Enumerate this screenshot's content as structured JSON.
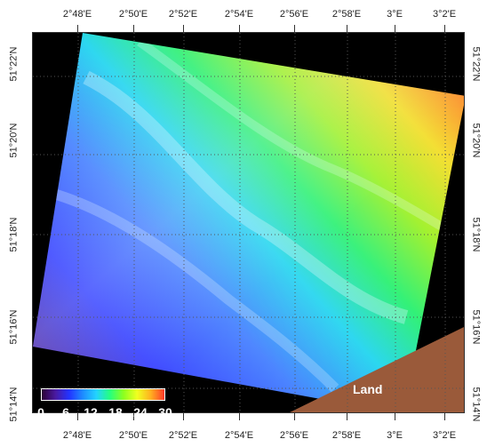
{
  "map": {
    "lon_top": [
      "2°48'E",
      "2°50'E",
      "2°52'E",
      "2°54'E",
      "2°56'E",
      "2°58'E",
      "3°E",
      "3°2'E"
    ],
    "lon_bottom": [
      "2°48'E",
      "2°50'E",
      "2°52'E",
      "2°54'E",
      "2°56'E",
      "2°58'E",
      "3°E",
      "3°2'E"
    ],
    "lat_left": [
      "51°22'N",
      "51°20'N",
      "51°18'N",
      "51°16'N",
      "51°14'N"
    ],
    "lat_right": [
      "51°22'N",
      "51°20'N",
      "51°18'N",
      "51°16'N",
      "51°14'N"
    ],
    "land_label": "Land",
    "colorbar_ticks": [
      "0",
      "6",
      "12",
      "18",
      "24",
      "30"
    ],
    "colors": {
      "background": "#000000",
      "land": "#9a5a3a",
      "grid": "#555555"
    }
  }
}
